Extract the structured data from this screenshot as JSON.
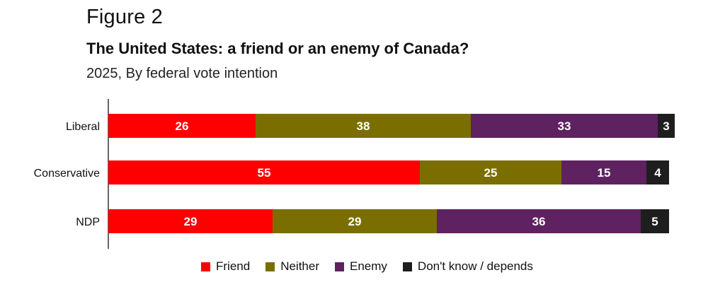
{
  "header": {
    "figure_label": "Figure 2",
    "title": "The United States: a friend or an enemy of Canada?",
    "subtitle": "2025, By federal vote intention"
  },
  "colors": {
    "friend": "#ff0000",
    "neither": "#7b6e00",
    "enemy": "#5e2260",
    "dont_know": "#1e1e1e"
  },
  "chart_data": {
    "type": "bar",
    "orientation": "horizontal",
    "stacked": true,
    "title": "The United States: a friend or an enemy of Canada?",
    "subtitle": "2025, By federal vote intention",
    "categories": [
      "Liberal",
      "Conservative",
      "NDP"
    ],
    "series": [
      {
        "name": "Friend",
        "values": [
          26,
          55,
          29
        ]
      },
      {
        "name": "Neither",
        "values": [
          38,
          25,
          29
        ]
      },
      {
        "name": "Enemy",
        "values": [
          33,
          15,
          36
        ]
      },
      {
        "name": "Don't know / depends",
        "values": [
          3,
          4,
          5
        ]
      }
    ],
    "xlim": [
      0,
      100
    ],
    "grid": false,
    "legend_position": "bottom"
  }
}
